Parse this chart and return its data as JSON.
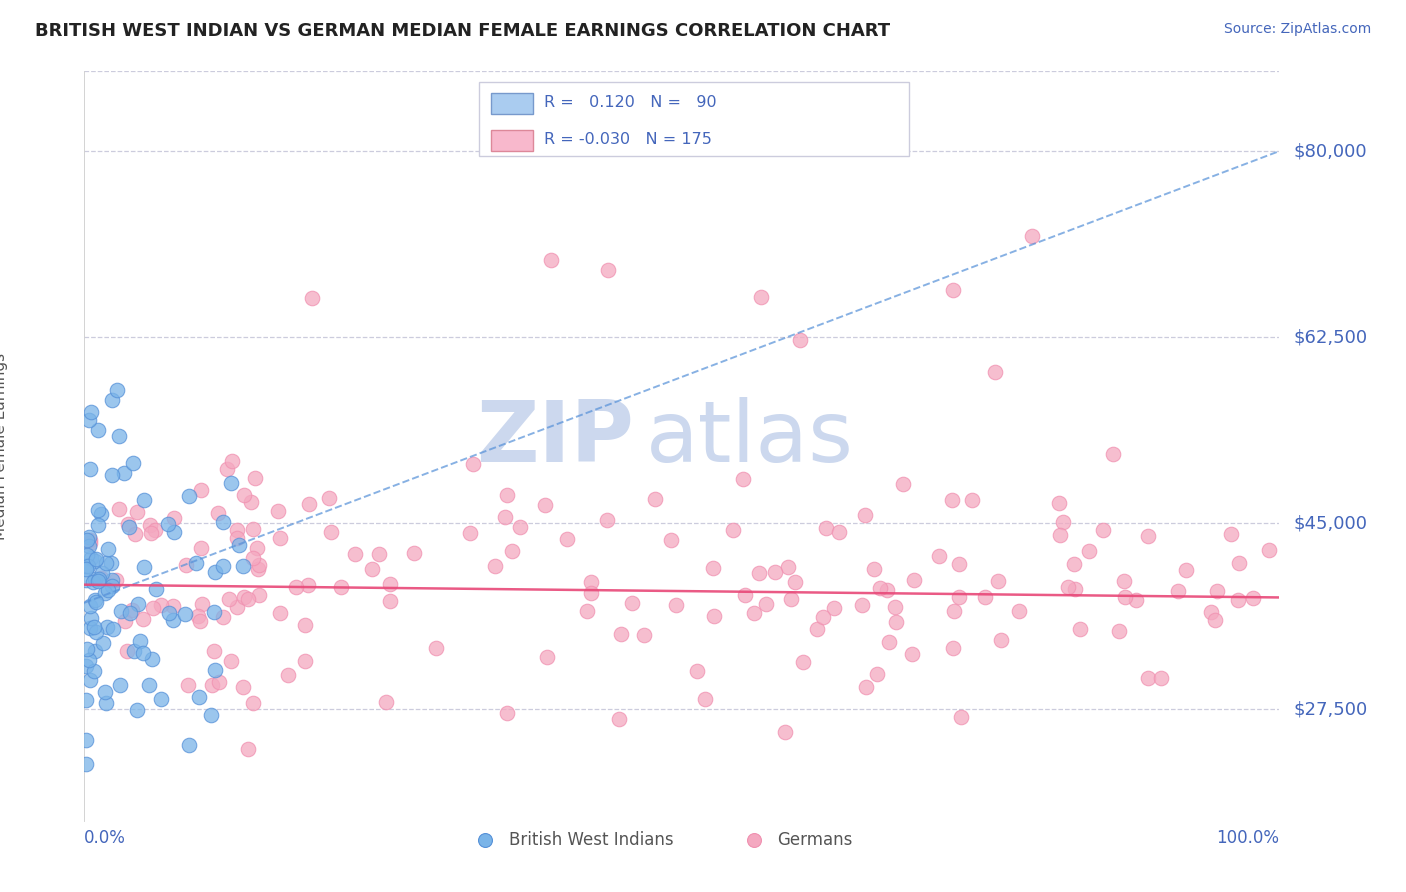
{
  "title": "BRITISH WEST INDIAN VS GERMAN MEDIAN FEMALE EARNINGS CORRELATION CHART",
  "source": "Source: ZipAtlas.com",
  "ylabel": "Median Female Earnings",
  "yticks": [
    27500,
    45000,
    62500,
    80000
  ],
  "ytick_labels": [
    "$27,500",
    "$45,000",
    "$62,500",
    "$80,000"
  ],
  "ymin": 17000,
  "ymax": 87500,
  "xmin": 0,
  "xmax": 100,
  "blue_dot_color": "#7ab4e8",
  "blue_dot_edge": "#5590d8",
  "pink_dot_color": "#f4a8c0",
  "pink_dot_edge": "#f090b0",
  "blue_line_color": "#5590d8",
  "pink_line_color": "#e84878",
  "blue_legend_face": "#aaccf0",
  "blue_legend_edge": "#7799cc",
  "pink_legend_face": "#f8b8cc",
  "pink_legend_edge": "#dd8899",
  "title_color": "#222222",
  "axis_label_color": "#4466bb",
  "ylabel_color": "#555555",
  "watermark_zip_color": "#ccd8ee",
  "watermark_atlas_color": "#ccd8ee",
  "background_color": "#ffffff",
  "grid_color": "#ccccdd",
  "legend_edge_color": "#ccccdd",
  "bottom_label_color": "#555555",
  "seed": 42,
  "blue_trend_y0": 37500,
  "blue_trend_y1": 80000,
  "pink_trend_y0": 39200,
  "pink_trend_y1": 38000
}
